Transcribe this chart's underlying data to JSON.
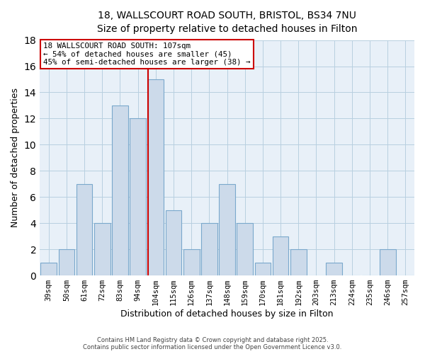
{
  "title_line1": "18, WALLSCOURT ROAD SOUTH, BRISTOL, BS34 7NU",
  "title_line2": "Size of property relative to detached houses in Filton",
  "xlabel": "Distribution of detached houses by size in Filton",
  "ylabel": "Number of detached properties",
  "categories": [
    "39sqm",
    "50sqm",
    "61sqm",
    "72sqm",
    "83sqm",
    "94sqm",
    "104sqm",
    "115sqm",
    "126sqm",
    "137sqm",
    "148sqm",
    "159sqm",
    "170sqm",
    "181sqm",
    "192sqm",
    "203sqm",
    "213sqm",
    "224sqm",
    "235sqm",
    "246sqm",
    "257sqm"
  ],
  "values": [
    1,
    2,
    7,
    4,
    13,
    12,
    15,
    5,
    2,
    4,
    7,
    4,
    1,
    3,
    2,
    0,
    1,
    0,
    0,
    2,
    0
  ],
  "bar_color": "#ccdaea",
  "bar_edge_color": "#7aa8cc",
  "highlight_index": 6,
  "highlight_line_color": "#cc0000",
  "ylim": [
    0,
    18
  ],
  "yticks": [
    0,
    2,
    4,
    6,
    8,
    10,
    12,
    14,
    16,
    18
  ],
  "annotation_line1": "18 WALLSCOURT ROAD SOUTH: 107sqm",
  "annotation_line2": "← 54% of detached houses are smaller (45)",
  "annotation_line3": "45% of semi-detached houses are larger (38) →",
  "annotation_box_edge": "#cc0000",
  "footer_line1": "Contains HM Land Registry data © Crown copyright and database right 2025.",
  "footer_line2": "Contains public sector information licensed under the Open Government Licence v3.0.",
  "bg_color": "#ffffff",
  "plot_bg_color": "#e8f0f8",
  "grid_color": "#b8cfe0"
}
